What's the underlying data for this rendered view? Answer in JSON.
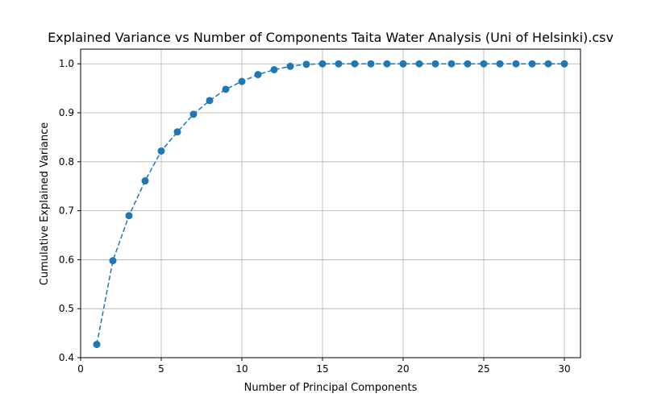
{
  "chart_data": {
    "type": "line",
    "title": "Explained Variance vs Number of Components Taita Water Analysis (Uni of Helsinki).csv",
    "xlabel": "Number of Principal Components",
    "ylabel": "Cumulative Explained Variance",
    "xlim": [
      0,
      31
    ],
    "ylim": [
      0.4,
      1.03
    ],
    "xticks": [
      0,
      5,
      10,
      15,
      20,
      25,
      30
    ],
    "yticks": [
      0.4,
      0.5,
      0.6,
      0.7,
      0.8,
      0.9,
      1.0
    ],
    "xtick_labels": [
      "0",
      "5",
      "10",
      "15",
      "20",
      "25",
      "30"
    ],
    "ytick_labels": [
      "0.4",
      "0.5",
      "0.6",
      "0.7",
      "0.8",
      "0.9",
      "1.0"
    ],
    "grid": true,
    "legend": null,
    "series": [
      {
        "color": "#1f77b4",
        "line_style": "dashed",
        "marker": "circle",
        "x": [
          1,
          2,
          3,
          4,
          5,
          6,
          7,
          8,
          9,
          10,
          11,
          12,
          13,
          14,
          15,
          16,
          17,
          18,
          19,
          20,
          21,
          22,
          23,
          24,
          25,
          26,
          27,
          28,
          29,
          30
        ],
        "values": [
          0.427,
          0.598,
          0.69,
          0.761,
          0.822,
          0.861,
          0.897,
          0.925,
          0.948,
          0.964,
          0.978,
          0.988,
          0.995,
          0.999,
          1.0,
          1.0,
          1.0,
          1.0,
          1.0,
          1.0,
          1.0,
          1.0,
          1.0,
          1.0,
          1.0,
          1.0,
          1.0,
          1.0,
          1.0,
          1.0
        ]
      }
    ]
  }
}
